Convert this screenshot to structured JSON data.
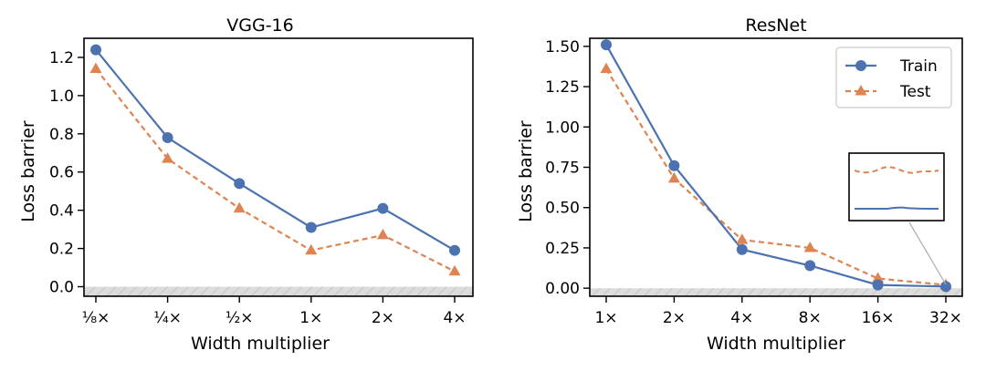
{
  "chart_data": [
    {
      "type": "line",
      "title": "VGG-16",
      "xlabel": "Width multiplier",
      "ylabel": "Loss barrier",
      "categories": [
        "⅛×",
        "¼×",
        "½×",
        "1×",
        "2×",
        "4×"
      ],
      "ylim": [
        -0.05,
        1.3
      ],
      "yticks": [
        "0.0",
        "0.2",
        "0.4",
        "0.6",
        "0.8",
        "1.0",
        "1.2"
      ],
      "ytick_values": [
        0,
        0.2,
        0.4,
        0.6,
        0.8,
        1.0,
        1.2
      ],
      "grid": false,
      "shaded_band": "below zero, hatched gray",
      "series": [
        {
          "name": "Train",
          "values": [
            1.24,
            0.78,
            0.54,
            0.31,
            0.41,
            0.19
          ]
        },
        {
          "name": "Test",
          "values": [
            1.14,
            0.67,
            0.41,
            0.19,
            0.27,
            0.08
          ]
        }
      ]
    },
    {
      "type": "line",
      "title": "ResNet",
      "xlabel": "Width multiplier",
      "ylabel": "Loss barrier",
      "categories": [
        "1×",
        "2×",
        "4×",
        "8×",
        "16×",
        "32×"
      ],
      "ylim": [
        -0.05,
        1.55
      ],
      "yticks": [
        "0.00",
        "0.25",
        "0.50",
        "0.75",
        "1.00",
        "1.25",
        "1.50"
      ],
      "ytick_values": [
        0,
        0.25,
        0.5,
        0.75,
        1.0,
        1.25,
        1.5
      ],
      "grid": false,
      "legend": "top-right",
      "shaded_band": "below zero, hatched gray",
      "inset": "zoom on the 32× points",
      "series": [
        {
          "name": "Train",
          "values": [
            1.51,
            0.76,
            0.24,
            0.14,
            0.02,
            0.01
          ]
        },
        {
          "name": "Test",
          "values": [
            1.36,
            0.68,
            0.3,
            0.25,
            0.06,
            0.02
          ]
        }
      ]
    }
  ],
  "legend": {
    "train_label": "Train",
    "test_label": "Test"
  },
  "colors": {
    "train": "#4C72B0",
    "test": "#DD8452",
    "band": "#DCDCDC",
    "hatch": "#B8B8B8"
  }
}
